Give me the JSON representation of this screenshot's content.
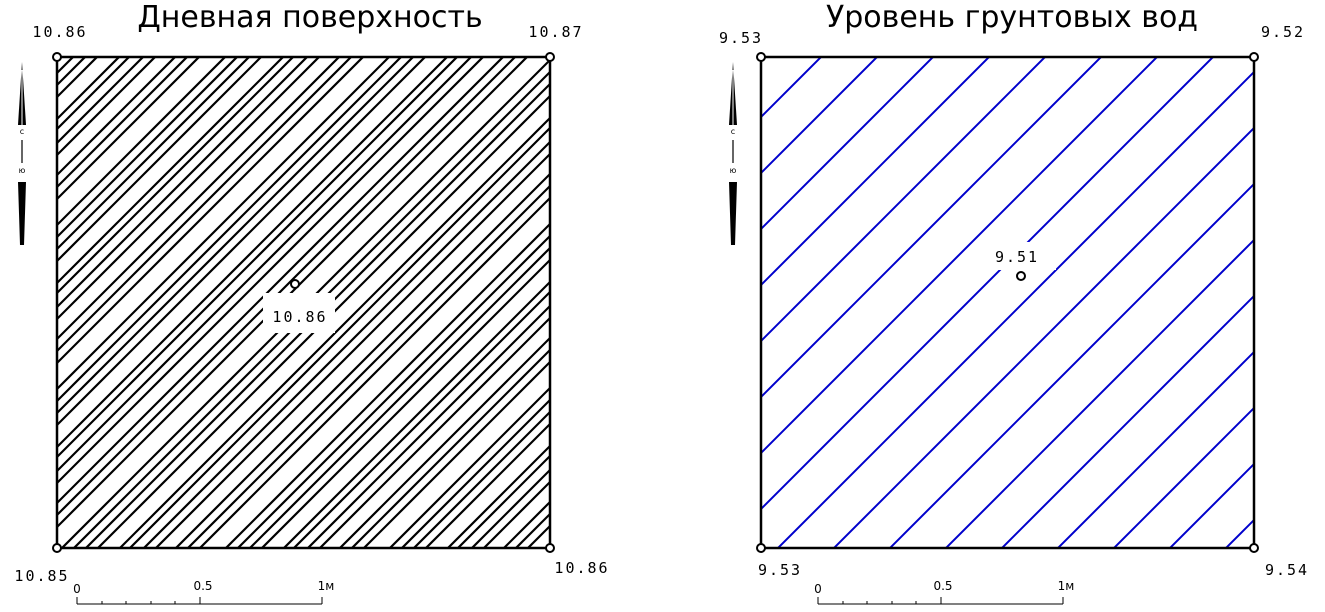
{
  "panels": [
    {
      "title": "Дневная поверхность",
      "corners": {
        "top_left": "10.86",
        "top_right": "10.87",
        "bottom_left": "10.85",
        "bottom_right": "10.86"
      },
      "center": "10.86",
      "hatch_color": "#000000",
      "scale": {
        "start": "0",
        "mid": "0.5",
        "end": "1м"
      },
      "north_arrow": {
        "north": "с",
        "south": "ю"
      }
    },
    {
      "title": "Уровень грунтовых вод",
      "corners": {
        "top_left": "9.53",
        "top_right": "9.52",
        "bottom_left": "9.53",
        "bottom_right": "9.54"
      },
      "center": "9.51",
      "hatch_color": "#0000cc",
      "scale": {
        "start": "0",
        "mid": "0.5",
        "end": "1м"
      },
      "north_arrow": {
        "north": "с",
        "south": "ю"
      }
    }
  ]
}
